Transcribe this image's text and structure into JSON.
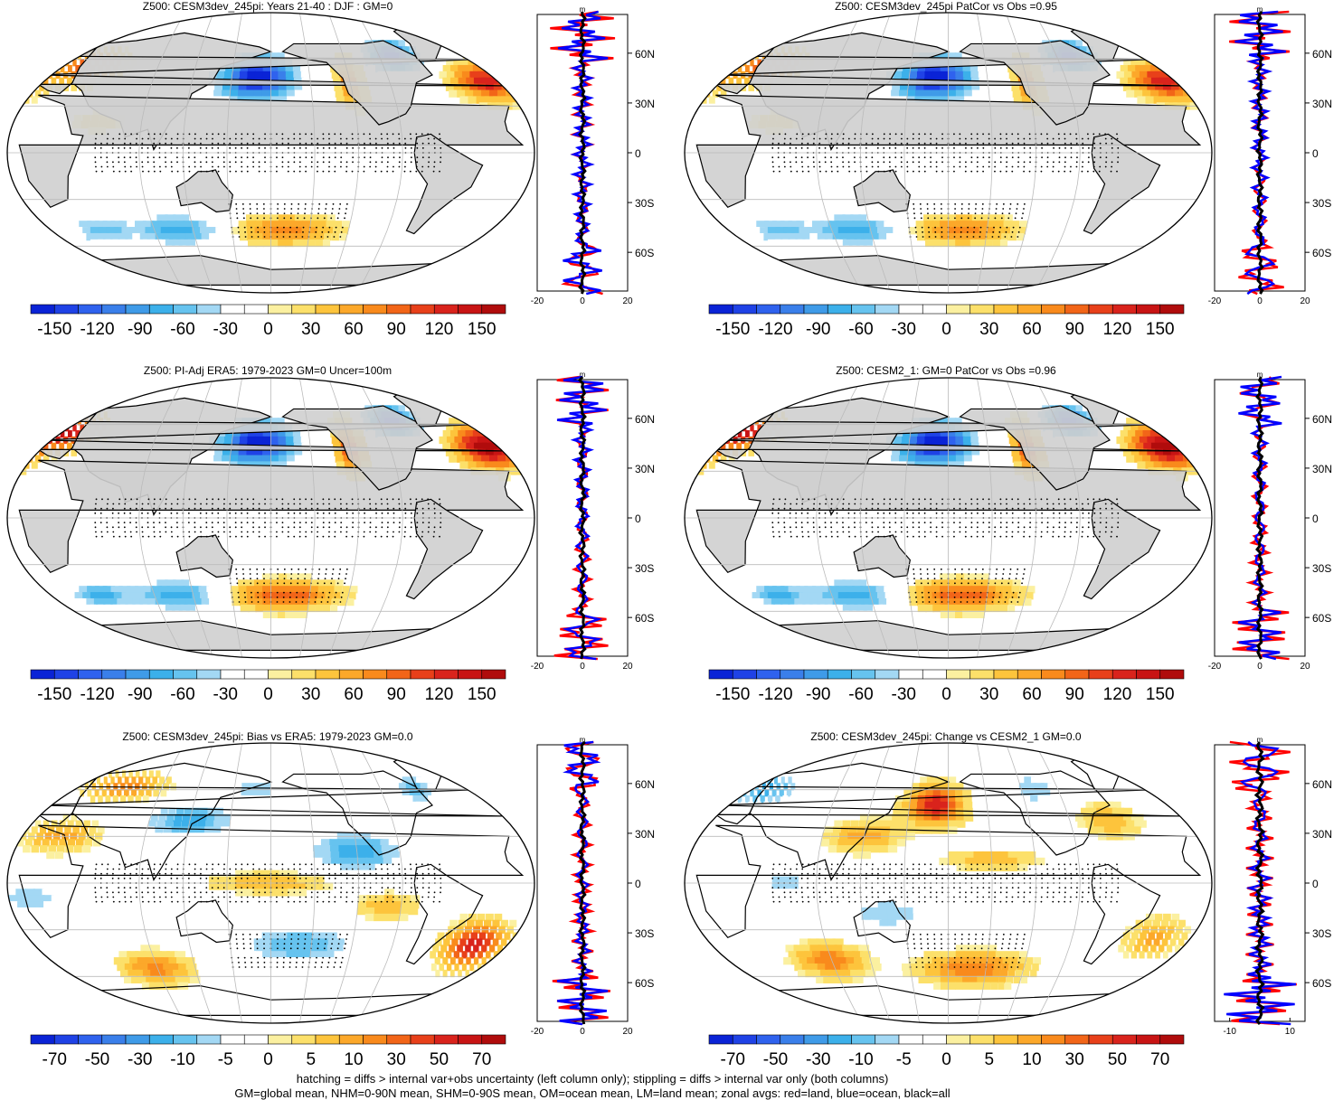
{
  "panels": [
    {
      "title": "Z500: CESM3dev_245pi: Years 21-40 : DJF : GM=0",
      "scale": "large",
      "variant": "sim"
    },
    {
      "title": "Z500: CESM3dev_245pi PatCor vs Obs =0.95",
      "scale": "large",
      "variant": "sim"
    },
    {
      "title": "Z500: PI-Adj ERA5: 1979-2023 GM=0 Uncer=100m",
      "scale": "large",
      "variant": "obs"
    },
    {
      "title": "Z500: CESM2_1: GM=0 PatCor vs Obs =0.96",
      "scale": "large",
      "variant": "obs"
    },
    {
      "title": "Z500: CESM3dev_245pi: Bias vs ERA5: 1979-2023 GM=0.0",
      "scale": "small",
      "variant": "bias"
    },
    {
      "title": "Z500: CESM3dev_245pi: Change vs CESM2_1 GM=0.0",
      "scale": "small",
      "variant": "change"
    }
  ],
  "colorbars": {
    "large": {
      "labels": [
        "-150",
        "-120",
        "-90",
        "-60",
        "-30",
        "0",
        "30",
        "60",
        "90",
        "120",
        "150"
      ],
      "colors": [
        "#0a23d6",
        "#1f42e6",
        "#2f62ee",
        "#3a7fea",
        "#3f9be8",
        "#3cb0ea",
        "#66c3ef",
        "#a3d8f4",
        "#ffffff",
        "#ffffff",
        "#fbf0a0",
        "#fce06a",
        "#fdc43c",
        "#fca82a",
        "#f98a1c",
        "#f26518",
        "#e8401a",
        "#d9231c",
        "#c81414",
        "#b00c0c"
      ]
    },
    "small": {
      "labels": [
        "-70",
        "-50",
        "-30",
        "-10",
        "-5",
        "0",
        "5",
        "10",
        "30",
        "50",
        "70"
      ],
      "colors": [
        "#0a23d6",
        "#1f42e6",
        "#2f62ee",
        "#3a7fea",
        "#3f9be8",
        "#3cb0ea",
        "#66c3ef",
        "#a3d8f4",
        "#ffffff",
        "#ffffff",
        "#fbf0a0",
        "#fce06a",
        "#fdc43c",
        "#fca82a",
        "#f98a1c",
        "#f26518",
        "#e8401a",
        "#d9231c",
        "#c81414",
        "#b00c0c"
      ]
    }
  },
  "zonal": {
    "unit": "m",
    "lat_labels": [
      "60N",
      "30N",
      "0",
      "30S",
      "60S"
    ],
    "lat_values": [
      60,
      30,
      0,
      -30,
      -60
    ],
    "xticks_large": [
      "-20",
      "0",
      "20"
    ],
    "xticks_small": [
      "-10",
      "10"
    ],
    "line_colors": {
      "land": "#ff0000",
      "ocean": "#0000ff",
      "all": "#000000"
    }
  },
  "footnotes": [
    "hatching = diffs > internal var+obs uncertainty (left column only); stippling = diffs > internal var only (both columns)",
    "GM=global mean, NHM=0-90N mean, SHM=0-90S mean, OM=ocean mean, LM=land mean; zonal avgs: red=land, blue=ocean, black=all"
  ],
  "chart_data": [
    {
      "type": "heatmap",
      "title": "Z500: CESM3dev_245pi: Years 21-40 : DJF : GM=0",
      "colorbar_ticks": [
        -150,
        -120,
        -90,
        -60,
        -30,
        0,
        30,
        60,
        90,
        120,
        150
      ],
      "anomalies": [
        {
          "lon": 170,
          "lat": 48,
          "value": -150
        },
        {
          "lon": 280,
          "lat": 62,
          "value": -120
        },
        {
          "lon": 345,
          "lat": 45,
          "value": 120
        },
        {
          "lon": 35,
          "lat": 55,
          "value": 90
        },
        {
          "lon": 240,
          "lat": 48,
          "value": 60
        },
        {
          "lon": 190,
          "lat": -50,
          "value": 60
        },
        {
          "lon": 110,
          "lat": -50,
          "value": -60
        }
      ],
      "zonal_range": [
        -20,
        20
      ]
    },
    {
      "type": "heatmap",
      "title": "Z500: CESM3dev_245pi PatCor vs Obs =0.95",
      "colorbar_ticks": [
        -150,
        -120,
        -90,
        -60,
        -30,
        0,
        30,
        60,
        90,
        120,
        150
      ],
      "anomalies": [
        {
          "lon": 170,
          "lat": 48,
          "value": -150
        },
        {
          "lon": 280,
          "lat": 62,
          "value": -120
        },
        {
          "lon": 345,
          "lat": 45,
          "value": 120
        },
        {
          "lon": 35,
          "lat": 55,
          "value": 90
        },
        {
          "lon": 240,
          "lat": 48,
          "value": 60
        },
        {
          "lon": 190,
          "lat": -50,
          "value": 60
        },
        {
          "lon": 110,
          "lat": -50,
          "value": -60
        }
      ],
      "zonal_range": [
        -20,
        20
      ]
    },
    {
      "type": "heatmap",
      "title": "Z500: PI-Adj ERA5: 1979-2023 GM=0 Uncer=100m",
      "colorbar_ticks": [
        -150,
        -120,
        -90,
        -60,
        -30,
        0,
        30,
        60,
        90,
        120,
        150
      ],
      "anomalies": [
        {
          "lon": 170,
          "lat": 48,
          "value": -150
        },
        {
          "lon": 280,
          "lat": 62,
          "value": -120
        },
        {
          "lon": 345,
          "lat": 45,
          "value": 150
        },
        {
          "lon": 20,
          "lat": 55,
          "value": 120
        },
        {
          "lon": 240,
          "lat": 48,
          "value": 90
        },
        {
          "lon": 190,
          "lat": -50,
          "value": 90
        },
        {
          "lon": 110,
          "lat": -50,
          "value": -60
        }
      ],
      "zonal_range": [
        -20,
        20
      ]
    },
    {
      "type": "heatmap",
      "title": "Z500: CESM2_1: GM=0 PatCor vs Obs =0.96",
      "colorbar_ticks": [
        -150,
        -120,
        -90,
        -60,
        -30,
        0,
        30,
        60,
        90,
        120,
        150
      ],
      "anomalies": [
        {
          "lon": 170,
          "lat": 48,
          "value": -150
        },
        {
          "lon": 280,
          "lat": 62,
          "value": -120
        },
        {
          "lon": 345,
          "lat": 45,
          "value": 150
        },
        {
          "lon": 20,
          "lat": 55,
          "value": 120
        },
        {
          "lon": 240,
          "lat": 48,
          "value": 90
        },
        {
          "lon": 190,
          "lat": -50,
          "value": 90
        },
        {
          "lon": 110,
          "lat": -50,
          "value": -60
        }
      ],
      "zonal_range": [
        -20,
        20
      ]
    },
    {
      "type": "heatmap",
      "title": "Z500: CESM3dev_245pi: Bias vs ERA5: 1979-2023 GM=0.0",
      "colorbar_ticks": [
        -70,
        -50,
        -30,
        -10,
        -5,
        0,
        5,
        10,
        30,
        50,
        70
      ],
      "anomalies": [
        {
          "lon": 330,
          "lat": -40,
          "value": 50
        },
        {
          "lon": 120,
          "lat": 40,
          "value": -30
        },
        {
          "lon": 240,
          "lat": 20,
          "value": -30
        },
        {
          "lon": 60,
          "lat": 62,
          "value": 30
        },
        {
          "lon": 90,
          "lat": -55,
          "value": 30
        }
      ],
      "zonal_range": [
        -20,
        20
      ]
    },
    {
      "type": "heatmap",
      "title": "Z500: CESM3dev_245pi: Change vs CESM2_1 GM=0.0",
      "colorbar_ticks": [
        -70,
        -50,
        -30,
        -10,
        -5,
        0,
        5,
        10,
        30,
        50,
        70
      ],
      "anomalies": [
        {
          "lon": 170,
          "lat": 50,
          "value": 50
        },
        {
          "lon": 200,
          "lat": -55,
          "value": 30
        },
        {
          "lon": 90,
          "lat": -50,
          "value": 30
        },
        {
          "lon": 30,
          "lat": 60,
          "value": -30
        },
        {
          "lon": 250,
          "lat": 60,
          "value": -10
        }
      ],
      "zonal_range": [
        -15,
        15
      ]
    }
  ]
}
